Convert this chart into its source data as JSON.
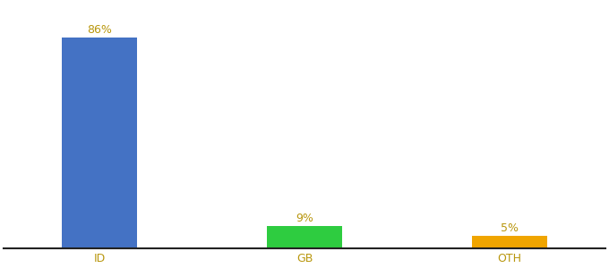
{
  "categories": [
    "ID",
    "GB",
    "OTH"
  ],
  "values": [
    86,
    9,
    5
  ],
  "bar_colors": [
    "#4472c4",
    "#2ecc40",
    "#f0a500"
  ],
  "labels": [
    "86%",
    "9%",
    "5%"
  ],
  "label_color": "#b8960c",
  "tick_color": "#b8960c",
  "label_fontsize": 9,
  "tick_fontsize": 9,
  "background_color": "#ffffff",
  "ylim": [
    0,
    100
  ],
  "bar_width": 0.55
}
